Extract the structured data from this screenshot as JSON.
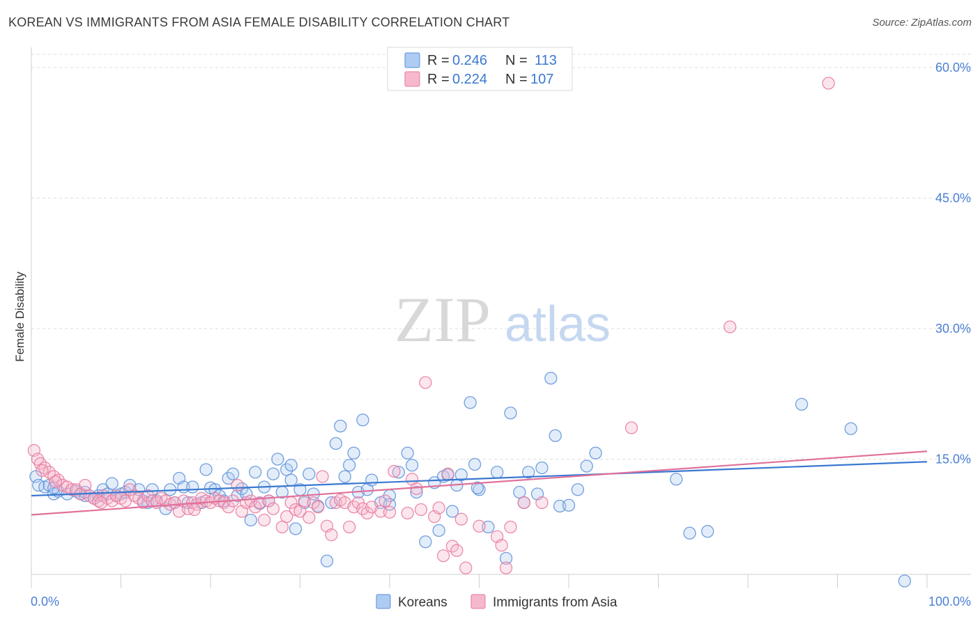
{
  "title": "KOREAN VS IMMIGRANTS FROM ASIA FEMALE DISABILITY CORRELATION CHART",
  "source": "Source: ZipAtlas.com",
  "watermark": {
    "zip": "ZIP",
    "atlas": "atlas"
  },
  "legend": {
    "items": [
      {
        "r_label": "R =",
        "r_value": "0.246",
        "n_label": "N =",
        "n_value": "113"
      },
      {
        "r_label": "R =",
        "r_value": "0.224",
        "n_label": "N =",
        "n_value": "107"
      }
    ]
  },
  "bottom_legend": [
    "Koreans",
    "Immigrants from Asia"
  ],
  "colors": {
    "blue_fill": "#aecbf2",
    "blue_stroke": "#5b8fd9",
    "blue_line": "#3a78d0",
    "pink_fill": "#f6b8cc",
    "pink_stroke": "#e8789e",
    "pink_line": "#e0709a",
    "label": "#4a7fd4"
  },
  "chart_data": {
    "type": "scatter",
    "ylabel": "Female Disability",
    "xlim": [
      0,
      100
    ],
    "ylim": [
      0,
      60
    ],
    "x_tick_labels": [
      "0.0%",
      "100.0%"
    ],
    "y_ticks": [
      15,
      30,
      45,
      60
    ],
    "y_tick_labels": [
      "15.0%",
      "30.0%",
      "45.0%",
      "60.0%"
    ],
    "grid": true,
    "series": [
      {
        "name": "Koreans",
        "trend": [
          [
            0,
            10.8
          ],
          [
            100,
            14.7
          ]
        ],
        "points": [
          [
            0.5,
            13
          ],
          [
            0.8,
            12
          ],
          [
            1.5,
            11.8
          ],
          [
            2,
            12
          ],
          [
            2.5,
            11
          ],
          [
            3,
            11.3
          ],
          [
            4,
            11
          ],
          [
            5,
            11.3
          ],
          [
            5.5,
            11
          ],
          [
            6,
            10.8
          ],
          [
            7,
            10.5
          ],
          [
            7.5,
            10.8
          ],
          [
            8,
            11.5
          ],
          [
            8.5,
            11
          ],
          [
            9,
            12.2
          ],
          [
            9.5,
            10.8
          ],
          [
            10,
            11
          ],
          [
            10.5,
            11.2
          ],
          [
            11,
            12
          ],
          [
            12,
            11.5
          ],
          [
            12.5,
            10.2
          ],
          [
            13,
            10
          ],
          [
            13.5,
            11.5
          ],
          [
            14,
            10.2
          ],
          [
            15,
            9.3
          ],
          [
            15.5,
            11.5
          ],
          [
            16,
            10
          ],
          [
            16.5,
            12.8
          ],
          [
            17,
            11.8
          ],
          [
            17.5,
            10
          ],
          [
            18,
            11.8
          ],
          [
            19,
            10
          ],
          [
            19.5,
            13.8
          ],
          [
            20,
            11.7
          ],
          [
            20.5,
            11.5
          ],
          [
            21,
            10.8
          ],
          [
            21.5,
            10.2
          ],
          [
            22,
            12.8
          ],
          [
            22.5,
            13.3
          ],
          [
            23,
            10.8
          ],
          [
            23.5,
            11.6
          ],
          [
            24,
            11
          ],
          [
            24.5,
            8
          ],
          [
            25,
            13.5
          ],
          [
            25.5,
            9.9
          ],
          [
            26,
            11.8
          ],
          [
            26.5,
            10.2
          ],
          [
            27,
            13.3
          ],
          [
            27.5,
            15
          ],
          [
            28,
            11.2
          ],
          [
            28.5,
            13.8
          ],
          [
            29,
            14.3
          ],
          [
            29.5,
            7
          ],
          [
            30,
            11.5
          ],
          [
            30.5,
            10
          ],
          [
            31,
            13.3
          ],
          [
            31.5,
            11
          ],
          [
            32,
            9.6
          ],
          [
            33,
            3.3
          ],
          [
            33.5,
            10
          ],
          [
            34,
            16.8
          ],
          [
            34.5,
            18.8
          ],
          [
            35,
            13
          ],
          [
            35.5,
            14.3
          ],
          [
            36,
            15.7
          ],
          [
            36.5,
            11.2
          ],
          [
            37,
            19.5
          ],
          [
            37.5,
            11.5
          ],
          [
            38,
            12.6
          ],
          [
            39,
            10
          ],
          [
            40,
            10.8
          ],
          [
            41,
            13.5
          ],
          [
            42,
            15.7
          ],
          [
            42.5,
            14.3
          ],
          [
            43,
            11.2
          ],
          [
            44,
            5.5
          ],
          [
            45,
            12.3
          ],
          [
            46,
            13
          ],
          [
            47,
            9
          ],
          [
            47.5,
            12
          ],
          [
            48,
            13.2
          ],
          [
            49,
            21.5
          ],
          [
            49.5,
            14.4
          ],
          [
            50,
            11.5
          ],
          [
            51,
            7.2
          ],
          [
            52,
            13.5
          ],
          [
            53,
            3.6
          ],
          [
            53.5,
            20.3
          ],
          [
            55,
            10
          ],
          [
            55.5,
            13.5
          ],
          [
            56.5,
            11
          ],
          [
            57,
            14
          ],
          [
            58,
            24.3
          ],
          [
            58.5,
            17.7
          ],
          [
            59,
            9.6
          ],
          [
            60,
            9.7
          ],
          [
            61,
            11.5
          ],
          [
            62,
            14.2
          ],
          [
            63,
            15.7
          ],
          [
            72,
            12.7
          ],
          [
            73.5,
            6.5
          ],
          [
            75.5,
            6.7
          ],
          [
            86,
            21.3
          ],
          [
            91.5,
            18.5
          ],
          [
            97.5,
            1
          ],
          [
            40,
            9.8
          ],
          [
            45.5,
            6.8
          ],
          [
            54.5,
            11.2
          ],
          [
            46.5,
            13.2
          ],
          [
            2.5,
            11.7
          ],
          [
            6,
            11.2
          ],
          [
            29,
            12.6
          ],
          [
            49.8,
            11.7
          ]
        ]
      },
      {
        "name": "Immigrants from Asia",
        "trend": [
          [
            0,
            8.6
          ],
          [
            100,
            15.9
          ]
        ],
        "points": [
          [
            0.3,
            16
          ],
          [
            0.7,
            15
          ],
          [
            1,
            14.5
          ],
          [
            1.5,
            14
          ],
          [
            2,
            13.5
          ],
          [
            2.5,
            13
          ],
          [
            3,
            12.6
          ],
          [
            3.5,
            12
          ],
          [
            4,
            11.8
          ],
          [
            4.5,
            11.5
          ],
          [
            5,
            11.5
          ],
          [
            5.5,
            11
          ],
          [
            6,
            12
          ],
          [
            6.5,
            10.8
          ],
          [
            7,
            10.5
          ],
          [
            7.5,
            10.2
          ],
          [
            8,
            10.8
          ],
          [
            8.5,
            10.5
          ],
          [
            9,
            10.2
          ],
          [
            9.5,
            10.8
          ],
          [
            10,
            10.5
          ],
          [
            10.5,
            10.2
          ],
          [
            11,
            11.5
          ],
          [
            11.5,
            10.8
          ],
          [
            12,
            10.5
          ],
          [
            12.5,
            10
          ],
          [
            13,
            10.8
          ],
          [
            13.5,
            10.2
          ],
          [
            14,
            10
          ],
          [
            14.5,
            10.5
          ],
          [
            15,
            10.2
          ],
          [
            15.5,
            9.8
          ],
          [
            16,
            10
          ],
          [
            16.5,
            9
          ],
          [
            17,
            10.2
          ],
          [
            17.5,
            9.3
          ],
          [
            18,
            10
          ],
          [
            18.5,
            9.8
          ],
          [
            19,
            10.5
          ],
          [
            19.5,
            10.2
          ],
          [
            20,
            10
          ],
          [
            20.5,
            10.5
          ],
          [
            21,
            10.2
          ],
          [
            21.5,
            10
          ],
          [
            22,
            9.5
          ],
          [
            22.5,
            10.2
          ],
          [
            23,
            12
          ],
          [
            23.5,
            9
          ],
          [
            24,
            10
          ],
          [
            24.5,
            10.2
          ],
          [
            25,
            9.5
          ],
          [
            25.5,
            10
          ],
          [
            26,
            8
          ],
          [
            26.5,
            10.2
          ],
          [
            27,
            9.3
          ],
          [
            28,
            7.2
          ],
          [
            28.5,
            8.4
          ],
          [
            29,
            10
          ],
          [
            29.5,
            9.2
          ],
          [
            30,
            9
          ],
          [
            30.5,
            10.2
          ],
          [
            31,
            8.3
          ],
          [
            31.5,
            10
          ],
          [
            32,
            9.5
          ],
          [
            32.5,
            13
          ],
          [
            33,
            7.3
          ],
          [
            33.5,
            6.3
          ],
          [
            34,
            10
          ],
          [
            34.5,
            10.3
          ],
          [
            35,
            10
          ],
          [
            35.5,
            7.2
          ],
          [
            36,
            9.5
          ],
          [
            36.5,
            10
          ],
          [
            37,
            9.3
          ],
          [
            37.5,
            8.8
          ],
          [
            38,
            9.5
          ],
          [
            39,
            9
          ],
          [
            39.5,
            10.2
          ],
          [
            40,
            8.9
          ],
          [
            40.5,
            13.6
          ],
          [
            42,
            8.8
          ],
          [
            42.5,
            12.7
          ],
          [
            43,
            11.6
          ],
          [
            43.5,
            9.2
          ],
          [
            44,
            23.8
          ],
          [
            45,
            8.4
          ],
          [
            45.5,
            9.4
          ],
          [
            46,
            3.9
          ],
          [
            46.5,
            13.3
          ],
          [
            47,
            5
          ],
          [
            47.5,
            4.5
          ],
          [
            48,
            8.1
          ],
          [
            48.5,
            2.5
          ],
          [
            50,
            7.3
          ],
          [
            52,
            6.1
          ],
          [
            52.5,
            5.1
          ],
          [
            53,
            2.5
          ],
          [
            53.5,
            7.2
          ],
          [
            55,
            10
          ],
          [
            57,
            10
          ],
          [
            67,
            18.6
          ],
          [
            78,
            30.2
          ],
          [
            89,
            58.2
          ],
          [
            1.2,
            13.7
          ],
          [
            2.7,
            12.4
          ],
          [
            7.8,
            10
          ],
          [
            18.2,
            9.2
          ]
        ]
      }
    ]
  }
}
